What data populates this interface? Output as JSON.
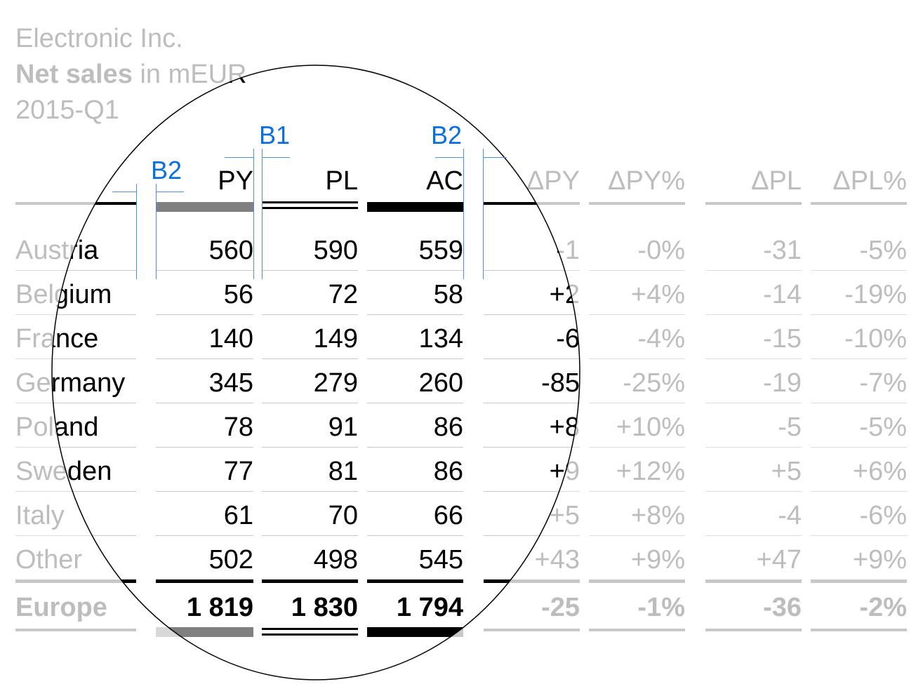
{
  "header": {
    "company": "Electronic Inc.",
    "measure_bold": "Net sales",
    "measure_rest": " in mEUR",
    "period": "2015-Q1"
  },
  "columns": [
    "PY",
    "PL",
    "AC",
    "ΔPY",
    "ΔPY%",
    "ΔPL",
    "ΔPL%"
  ],
  "rows": [
    {
      "name": "Austria",
      "PY": "560",
      "PL": "590",
      "AC": "559",
      "dPY": "-1",
      "dPYp": "-0%",
      "dPL": "-31",
      "dPLp": "-5%"
    },
    {
      "name": "Belgium",
      "PY": "56",
      "PL": "72",
      "AC": "58",
      "dPY": "+2",
      "dPYp": "+4%",
      "dPL": "-14",
      "dPLp": "-19%"
    },
    {
      "name": "France",
      "PY": "140",
      "PL": "149",
      "AC": "134",
      "dPY": "-6",
      "dPYp": "-4%",
      "dPL": "-15",
      "dPLp": "-10%"
    },
    {
      "name": "Germany",
      "PY": "345",
      "PL": "279",
      "AC": "260",
      "dPY": "-85",
      "dPYp": "-25%",
      "dPL": "-19",
      "dPLp": "-7%"
    },
    {
      "name": "Poland",
      "PY": "78",
      "PL": "91",
      "AC": "86",
      "dPY": "+8",
      "dPYp": "+10%",
      "dPL": "-5",
      "dPLp": "-5%"
    },
    {
      "name": "Sweden",
      "PY": "77",
      "PL": "81",
      "AC": "86",
      "dPY": "+9",
      "dPYp": "+12%",
      "dPL": "+5",
      "dPLp": "+6%"
    },
    {
      "name": "Italy",
      "PY": "61",
      "PL": "70",
      "AC": "66",
      "dPY": "+5",
      "dPYp": "+8%",
      "dPL": "-4",
      "dPLp": "-6%"
    },
    {
      "name": "Other",
      "PY": "502",
      "PL": "498",
      "AC": "545",
      "dPY": "+43",
      "dPYp": "+9%",
      "dPL": "+47",
      "dPLp": "+9%"
    }
  ],
  "total": {
    "name": "Europe",
    "PY": "1 819",
    "PL": "1 830",
    "AC": "1 794",
    "dPY": "-25",
    "dPYp": "-1%",
    "dPL": "-36",
    "dPLp": "-2%"
  },
  "annotations": {
    "b1": "B1",
    "b2_left": "B2",
    "b2_right": "B2"
  },
  "colors": {
    "faded": "#bdbdbd",
    "focus": "#000000",
    "annotation": "#0a6fe0",
    "py_bar": "#808080"
  }
}
